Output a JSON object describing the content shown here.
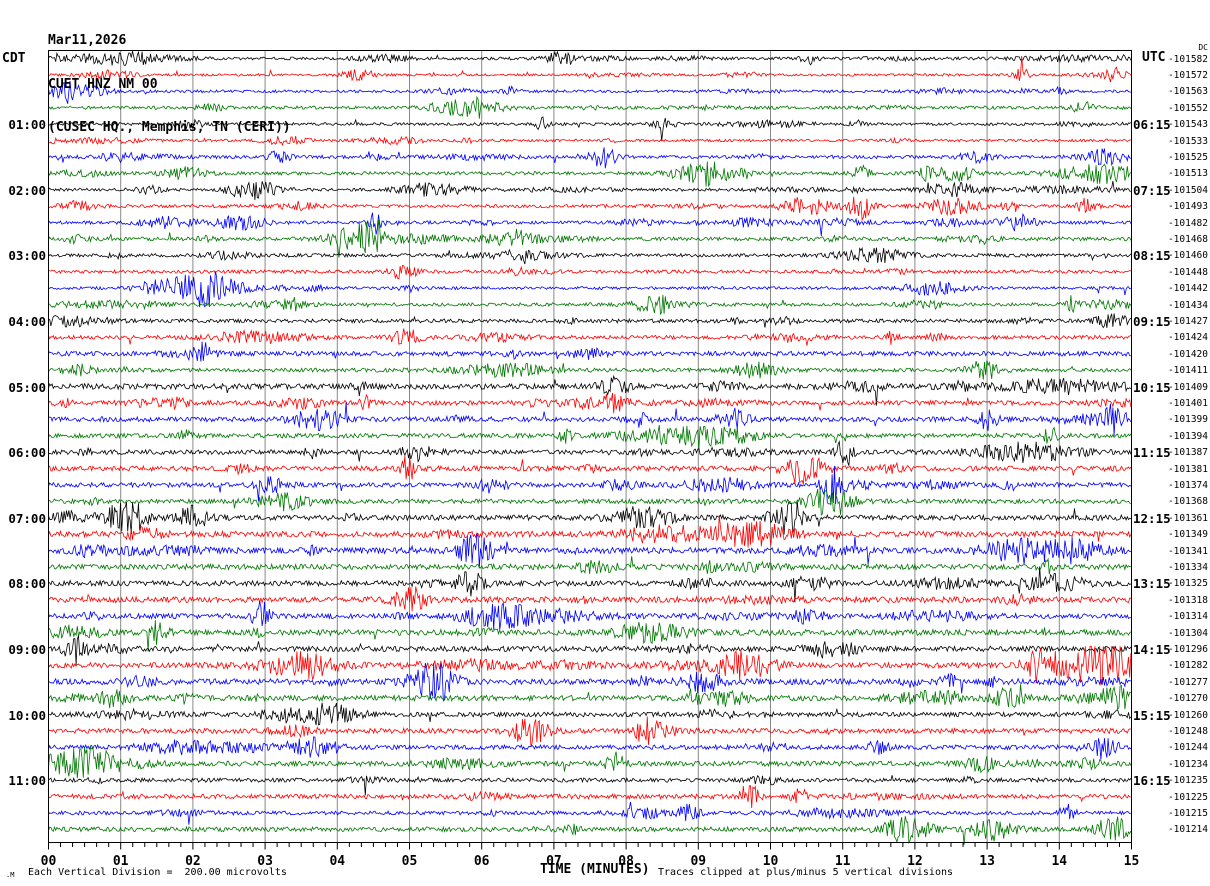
{
  "title": {
    "date": "Mar11,2026",
    "station": "CUET HNZ NM 00",
    "location": "(CUSEC HQ., Memphis, TN (CERI))"
  },
  "axes": {
    "left_timezone": "CDT",
    "right_timezone": "UTC",
    "dc_header": "DC",
    "x_title": "TIME (MINUTES)",
    "x_ticks": [
      "00",
      "01",
      "02",
      "03",
      "04",
      "05",
      "06",
      "07",
      "08",
      "09",
      "10",
      "11",
      "12",
      "13",
      "14",
      "15"
    ]
  },
  "footer": {
    "watermark": ".M",
    "left_note": "Each Vertical Division =  200.00 microvolts",
    "right_note": "Traces clipped at plus/minus 5 vertical divisions"
  },
  "chart_data": {
    "type": "line",
    "subtype": "helicorder-seismogram",
    "title": "CUET HNZ NM 00 (CUSEC HQ., Memphis, TN (CERI)) Mar11,2026",
    "xlabel": "TIME (MINUTES)",
    "x_range_minutes": [
      0,
      15
    ],
    "minutes_per_line": 15,
    "vertical_division_microvolts": 200.0,
    "clip_divisions": 5,
    "grid_color": "#888888",
    "trace_color_cycle": [
      "#000000",
      "#ff0000",
      "#0000ff",
      "#007700"
    ],
    "rows": [
      {
        "cdt": "",
        "utc": "",
        "dc": "-101582",
        "color": "#000000",
        "amp": 1.4
      },
      {
        "cdt": "",
        "utc": "",
        "dc": "-101572",
        "color": "#ff0000",
        "amp": 1.2
      },
      {
        "cdt": "",
        "utc": "",
        "dc": "-101563",
        "color": "#0000ff",
        "amp": 1.4
      },
      {
        "cdt": "",
        "utc": "",
        "dc": "-101552",
        "color": "#007700",
        "amp": 1.6
      },
      {
        "cdt": "01:00",
        "utc": "06:15",
        "dc": "-101543",
        "color": "#000000",
        "amp": 1.4
      },
      {
        "cdt": "",
        "utc": "",
        "dc": "-101533",
        "color": "#ff0000",
        "amp": 1.3
      },
      {
        "cdt": "",
        "utc": "",
        "dc": "-101525",
        "color": "#0000ff",
        "amp": 1.7
      },
      {
        "cdt": "",
        "utc": "",
        "dc": "-101513",
        "color": "#007700",
        "amp": 1.7
      },
      {
        "cdt": "02:00",
        "utc": "07:15",
        "dc": "-101504",
        "color": "#000000",
        "amp": 1.5
      },
      {
        "cdt": "",
        "utc": "",
        "dc": "-101493",
        "color": "#ff0000",
        "amp": 1.7
      },
      {
        "cdt": "",
        "utc": "",
        "dc": "-101482",
        "color": "#0000ff",
        "amp": 1.6
      },
      {
        "cdt": "",
        "utc": "",
        "dc": "-101468",
        "color": "#007700",
        "amp": 1.9
      },
      {
        "cdt": "03:00",
        "utc": "08:15",
        "dc": "-101460",
        "color": "#000000",
        "amp": 1.7
      },
      {
        "cdt": "",
        "utc": "",
        "dc": "-101448",
        "color": "#ff0000",
        "amp": 1.7
      },
      {
        "cdt": "",
        "utc": "",
        "dc": "-101442",
        "color": "#0000ff",
        "amp": 1.5
      },
      {
        "cdt": "",
        "utc": "",
        "dc": "-101434",
        "color": "#007700",
        "amp": 1.7
      },
      {
        "cdt": "04:00",
        "utc": "09:15",
        "dc": "-101427",
        "color": "#000000",
        "amp": 1.9
      },
      {
        "cdt": "",
        "utc": "",
        "dc": "-101424",
        "color": "#ff0000",
        "amp": 1.9
      },
      {
        "cdt": "",
        "utc": "",
        "dc": "-101420",
        "color": "#0000ff",
        "amp": 2.3
      },
      {
        "cdt": "",
        "utc": "",
        "dc": "-101411",
        "color": "#007700",
        "amp": 2.0
      },
      {
        "cdt": "05:00",
        "utc": "10:15",
        "dc": "-101409",
        "color": "#000000",
        "amp": 2.8
      },
      {
        "cdt": "",
        "utc": "",
        "dc": "-101401",
        "color": "#ff0000",
        "amp": 2.3
      },
      {
        "cdt": "",
        "utc": "",
        "dc": "-101399",
        "color": "#0000ff",
        "amp": 2.5
      },
      {
        "cdt": "",
        "utc": "",
        "dc": "-101394",
        "color": "#007700",
        "amp": 2.3
      },
      {
        "cdt": "06:00",
        "utc": "11:15",
        "dc": "-101387",
        "color": "#000000",
        "amp": 2.3
      },
      {
        "cdt": "",
        "utc": "",
        "dc": "-101381",
        "color": "#ff0000",
        "amp": 2.5
      },
      {
        "cdt": "",
        "utc": "",
        "dc": "-101374",
        "color": "#0000ff",
        "amp": 2.3
      },
      {
        "cdt": "",
        "utc": "",
        "dc": "-101368",
        "color": "#007700",
        "amp": 2.3
      },
      {
        "cdt": "07:00",
        "utc": "12:15",
        "dc": "-101361",
        "color": "#000000",
        "amp": 2.7
      },
      {
        "cdt": "",
        "utc": "",
        "dc": "-101349",
        "color": "#ff0000",
        "amp": 2.9
      },
      {
        "cdt": "",
        "utc": "",
        "dc": "-101341",
        "color": "#0000ff",
        "amp": 2.9
      },
      {
        "cdt": "",
        "utc": "",
        "dc": "-101334",
        "color": "#007700",
        "amp": 2.7
      },
      {
        "cdt": "08:00",
        "utc": "13:15",
        "dc": "-101325",
        "color": "#000000",
        "amp": 2.7
      },
      {
        "cdt": "",
        "utc": "",
        "dc": "-101318",
        "color": "#ff0000",
        "amp": 2.9
      },
      {
        "cdt": "",
        "utc": "",
        "dc": "-101314",
        "color": "#0000ff",
        "amp": 2.5
      },
      {
        "cdt": "",
        "utc": "",
        "dc": "-101304",
        "color": "#007700",
        "amp": 2.9
      },
      {
        "cdt": "09:00",
        "utc": "14:15",
        "dc": "-101296",
        "color": "#000000",
        "amp": 2.7
      },
      {
        "cdt": "",
        "utc": "",
        "dc": "-101282",
        "color": "#ff0000",
        "amp": 2.7
      },
      {
        "cdt": "",
        "utc": "",
        "dc": "-101277",
        "color": "#0000ff",
        "amp": 2.9
      },
      {
        "cdt": "",
        "utc": "",
        "dc": "-101270",
        "color": "#007700",
        "amp": 2.7
      },
      {
        "cdt": "10:00",
        "utc": "15:15",
        "dc": "-101260",
        "color": "#000000",
        "amp": 2.3
      },
      {
        "cdt": "",
        "utc": "",
        "dc": "-101248",
        "color": "#ff0000",
        "amp": 2.5
      },
      {
        "cdt": "",
        "utc": "",
        "dc": "-101244",
        "color": "#0000ff",
        "amp": 2.3
      },
      {
        "cdt": "",
        "utc": "",
        "dc": "-101234",
        "color": "#007700",
        "amp": 2.5
      },
      {
        "cdt": "11:00",
        "utc": "16:15",
        "dc": "-101235",
        "color": "#000000",
        "amp": 2.1
      },
      {
        "cdt": "",
        "utc": "",
        "dc": "-101225",
        "color": "#ff0000",
        "amp": 2.3
      },
      {
        "cdt": "",
        "utc": "",
        "dc": "-101215",
        "color": "#0000ff",
        "amp": 1.9
      },
      {
        "cdt": "",
        "utc": "",
        "dc": "-101214",
        "color": "#007700",
        "amp": 2.3
      }
    ]
  }
}
